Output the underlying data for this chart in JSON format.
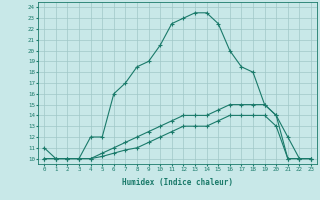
{
  "title": "",
  "xlabel": "Humidex (Indice chaleur)",
  "ylabel": "",
  "x_values": [
    0,
    1,
    2,
    3,
    4,
    5,
    6,
    7,
    8,
    9,
    10,
    11,
    12,
    13,
    14,
    15,
    16,
    17,
    18,
    19,
    20,
    21,
    22,
    23
  ],
  "line1_y": [
    11,
    10,
    10,
    10,
    12,
    12,
    16,
    17,
    18.5,
    19,
    20.5,
    22.5,
    23,
    23.5,
    23.5,
    22.5,
    20,
    18.5,
    18,
    15,
    14,
    12,
    10,
    10
  ],
  "line2_y": [
    10,
    10,
    10,
    10,
    10,
    10.5,
    11,
    11.5,
    12,
    12.5,
    13,
    13.5,
    14,
    14,
    14,
    14.5,
    15,
    15,
    15,
    15,
    14,
    10,
    10,
    10
  ],
  "line3_y": [
    10,
    10,
    10,
    10,
    10,
    10.2,
    10.5,
    10.8,
    11,
    11.5,
    12,
    12.5,
    13,
    13,
    13,
    13.5,
    14,
    14,
    14,
    14,
    13,
    10,
    10,
    10
  ],
  "line_color": "#1a7a6a",
  "bg_color": "#c8e8e8",
  "grid_color": "#a0c8c8",
  "ylim": [
    9.5,
    24.5
  ],
  "yticks": [
    10,
    11,
    12,
    13,
    14,
    15,
    16,
    17,
    18,
    19,
    20,
    21,
    22,
    23,
    24
  ],
  "xticks": [
    0,
    1,
    2,
    3,
    4,
    5,
    6,
    7,
    8,
    9,
    10,
    11,
    12,
    13,
    14,
    15,
    16,
    17,
    18,
    19,
    20,
    21,
    22,
    23
  ],
  "marker": "+",
  "markersize": 3,
  "linewidth": 0.8
}
